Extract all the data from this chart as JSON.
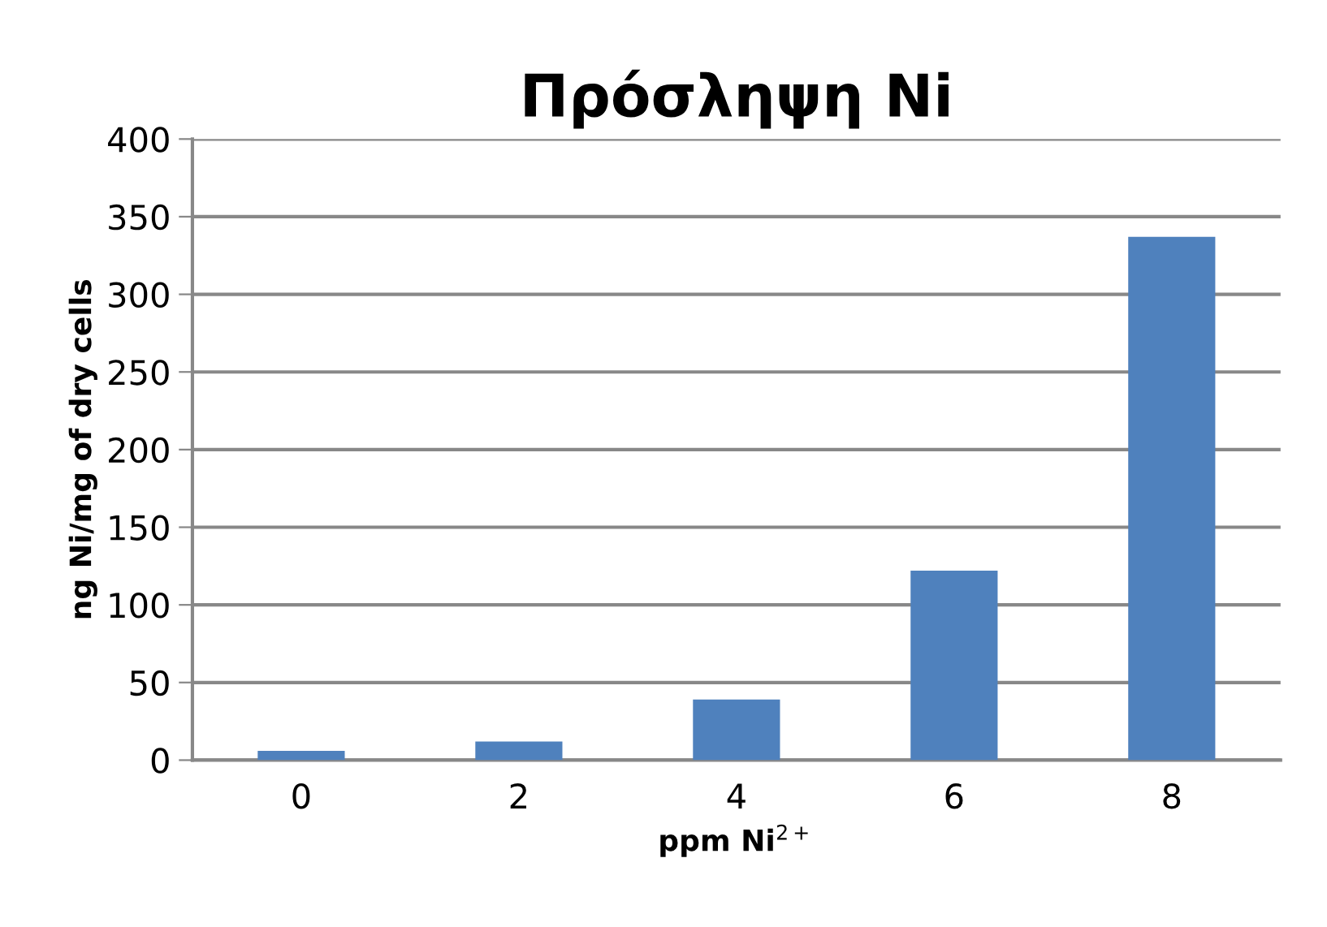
{
  "chart_data": {
    "type": "bar",
    "title": "Πρόσληψη Ni",
    "xlabel": "ppm Ni$^{2+}$",
    "ylabel": "ng Ni/mg of dry cells",
    "categories": [
      "0",
      "2",
      "4",
      "6",
      "8"
    ],
    "values": [
      6,
      12,
      39,
      122,
      337
    ],
    "color": "#4f81bd",
    "ylim": [
      0,
      400
    ],
    "yticks": [
      0,
      50,
      100,
      150,
      200,
      250,
      300,
      350,
      400
    ],
    "grid": "y",
    "legend": false
  }
}
